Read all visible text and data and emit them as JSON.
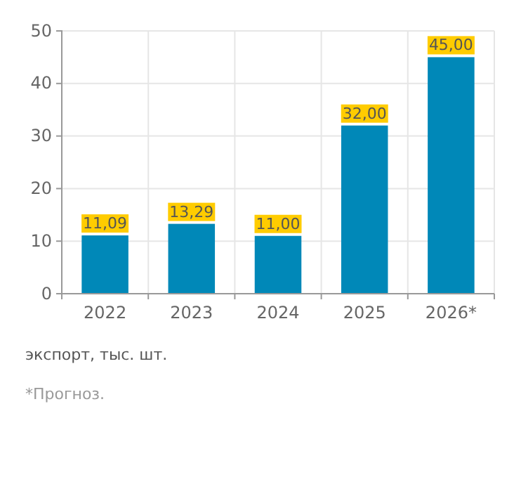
{
  "chart_data": {
    "type": "bar",
    "categories": [
      "2022",
      "2023",
      "2024",
      "2025",
      "2026*"
    ],
    "values": [
      11.09,
      13.29,
      11.0,
      32.0,
      45.0
    ],
    "color": "#0088b8",
    "value_labels": [
      "11,09",
      "13,29",
      "11,00",
      "32,00",
      "45,00"
    ],
    "ylim": [
      0,
      50
    ],
    "yticks": [
      0,
      10,
      20,
      30,
      40,
      50
    ],
    "grid": true,
    "annotations": [
      "экспорт, тыс. шт.",
      "*Прогноз."
    ]
  }
}
